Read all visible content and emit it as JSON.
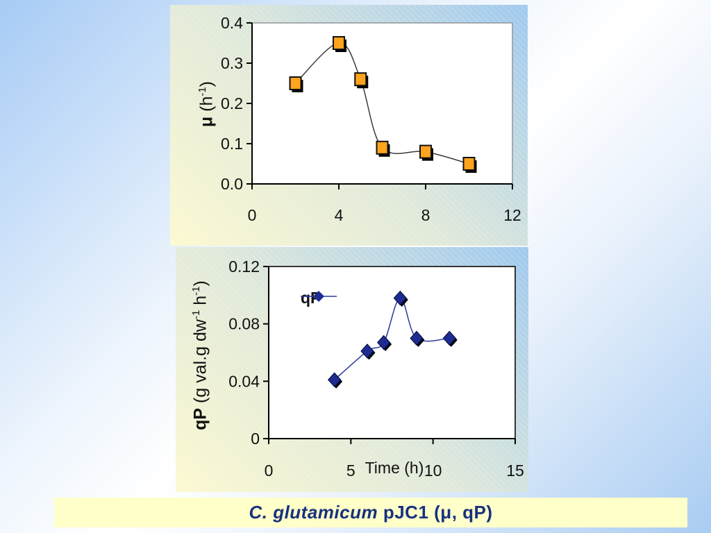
{
  "slide": {
    "caption": {
      "full_text": "C. glutamicum pJC1 (μ, qP)",
      "italic_part": "C. glutamicum",
      "rest_part": " pJC1 (μ, qP)",
      "text_color": "#17317e",
      "bg_color": "#ffffc9"
    }
  },
  "colors": {
    "slide_background_blue": "#a7cbf5",
    "panel_gradient_yellow": "#fcf9d0",
    "panel_gradient_blue": "#9fc9ee",
    "plot_background": "#ffffff"
  },
  "chart_data": [
    {
      "type": "line",
      "name": "mu-vs-time",
      "title": "",
      "xlabel": "",
      "ylabel": "μ (h-1)",
      "ylabel_parts": [
        {
          "t": "μ",
          "bold": true
        },
        {
          "t": " (h"
        },
        {
          "t": "-1",
          "sup": true
        },
        {
          "t": ")"
        }
      ],
      "xlim": [
        0,
        12
      ],
      "ylim": [
        0.0,
        0.4
      ],
      "x": [
        2,
        4,
        5,
        6,
        8,
        10
      ],
      "y": [
        0.25,
        0.35,
        0.26,
        0.09,
        0.08,
        0.05
      ],
      "xticks": [
        {
          "v": 0,
          "label": "0"
        },
        {
          "v": 4,
          "label": "4"
        },
        {
          "v": 8,
          "label": "8"
        },
        {
          "v": 12,
          "label": "12"
        }
      ],
      "yticks": [
        {
          "v": 0.0,
          "label": "0.0"
        },
        {
          "v": 0.1,
          "label": "0.1"
        },
        {
          "v": 0.2,
          "label": "0.2"
        },
        {
          "v": 0.3,
          "label": "0.3"
        },
        {
          "v": 0.4,
          "label": "0.4"
        }
      ],
      "marker": "square",
      "marker_fill": "#ffa41e",
      "marker_stroke": "#111111",
      "line_color": "#3a3a3a",
      "axis_color": "#000000",
      "frame_color": "#8f9598",
      "frame_style": "gray-top-right",
      "grid": false,
      "legend": null
    },
    {
      "type": "line",
      "name": "qp-vs-time",
      "title": "",
      "xlabel": "Time (h)",
      "ylabel": "qP (g val.g dw-1 h-1)",
      "ylabel_parts": [
        {
          "t": "qP",
          "bold": true
        },
        {
          "t": " (g val.g dw"
        },
        {
          "t": "-1",
          "sup": true
        },
        {
          "t": " h"
        },
        {
          "t": "-1",
          "sup": true
        },
        {
          "t": ")"
        }
      ],
      "xlim": [
        0,
        15
      ],
      "ylim": [
        0,
        0.12
      ],
      "x": [
        4,
        6,
        7,
        8,
        9,
        11
      ],
      "y": [
        0.041,
        0.061,
        0.067,
        0.098,
        0.07,
        0.07
      ],
      "xticks": [
        {
          "v": 0,
          "label": "0"
        },
        {
          "v": 5,
          "label": "5"
        },
        {
          "v": 10,
          "label": "10"
        },
        {
          "v": 15,
          "label": "15"
        }
      ],
      "yticks": [
        {
          "v": 0,
          "label": "0"
        },
        {
          "v": 0.04,
          "label": "0.04"
        },
        {
          "v": 0.08,
          "label": "0.08"
        },
        {
          "v": 0.12,
          "label": "0.12"
        }
      ],
      "marker": "diamond",
      "marker_fill": "#1e2b91",
      "marker_stroke": "#000a33",
      "line_color": "#2b3a9e",
      "axis_color": "#000000",
      "frame_color": "#222222",
      "frame_style": "full-box",
      "grid": false,
      "legend": {
        "label": "qP",
        "position": "upper-left-inside"
      }
    }
  ]
}
